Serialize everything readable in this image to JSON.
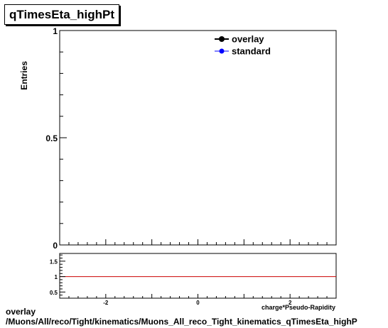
{
  "title": "qTimesEta_highPt",
  "footer": {
    "line1": "overlay",
    "line2": "/Muons/All/reco/Tight/kinematics/Muons_All_reco_Tight_kinematics_qTimesEta_highP"
  },
  "colors": {
    "overlay": "#000000",
    "standard": "#0000ff",
    "ratio_line": "#cc0000"
  },
  "chart_data": [
    {
      "type": "line",
      "title": "qTimesEta_highPt",
      "ylabel": "Entries",
      "xlabel": "charge*Pseudo-Rapidity",
      "xlim": [
        -3.0,
        3.0
      ],
      "ylim": [
        0,
        1
      ],
      "y_ticks": [
        "0",
        "0.5",
        "1"
      ],
      "series": [
        {
          "name": "overlay",
          "x": [],
          "values": []
        },
        {
          "name": "standard",
          "x": [],
          "values": []
        }
      ],
      "legend": "top-right"
    },
    {
      "type": "line",
      "xlim": [
        -3.0,
        3.0
      ],
      "ylim": [
        0.3,
        1.75
      ],
      "x_ticks": [
        "-2",
        "0",
        "2"
      ],
      "y_ticks": [
        "0.5",
        "1",
        "1.5"
      ],
      "reference_line": 1
    }
  ]
}
